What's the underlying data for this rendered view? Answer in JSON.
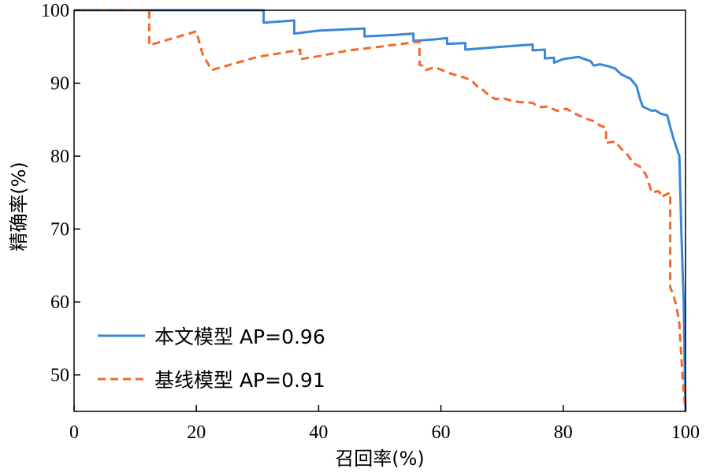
{
  "chart_data": {
    "type": "line",
    "title": "",
    "xlabel": "召回率(%)",
    "ylabel": "精确率(%)",
    "xlim": [
      0,
      100
    ],
    "ylim": [
      45,
      100
    ],
    "xticks": [
      0,
      20,
      40,
      60,
      80,
      100
    ],
    "yticks": [
      50,
      60,
      70,
      80,
      90,
      100
    ],
    "grid": false,
    "legend_position": "bottom-left",
    "series": [
      {
        "name": "本文模型 AP=0.96",
        "color": "#3a87d9",
        "dash": "solid",
        "x": [
          0,
          31,
          31,
          36,
          36,
          40,
          47.5,
          47.5,
          52,
          55.5,
          55.5,
          59,
          61,
          61,
          64,
          64,
          67,
          70,
          75,
          75,
          77,
          77,
          78.5,
          78.5,
          80,
          82.5,
          84.5,
          85,
          86,
          87.5,
          88.5,
          89.5,
          91,
          92,
          92.5,
          93,
          94.5,
          95,
          96,
          97,
          97.5,
          98,
          98.5,
          99,
          99.3,
          99.5,
          99.7,
          99.8,
          99.9,
          100
        ],
        "y": [
          100,
          100,
          98.3,
          98.6,
          96.8,
          97.2,
          97.5,
          96.4,
          96.6,
          96.8,
          95.8,
          96.0,
          96.2,
          95.4,
          95.5,
          94.6,
          94.8,
          95.0,
          95.3,
          94.5,
          94.6,
          93.4,
          93.5,
          92.8,
          93.3,
          93.6,
          93.0,
          92.4,
          92.6,
          92.3,
          92.0,
          91.2,
          90.6,
          89.6,
          88.0,
          86.8,
          86.2,
          86.3,
          85.8,
          85.6,
          84.0,
          82.5,
          81.2,
          80.0,
          70.0,
          65.0,
          60.0,
          55.0,
          50.0,
          45.0
        ]
      },
      {
        "name": "基线模型 AP=0.91",
        "color": "#f26a2b",
        "dash": "dashed",
        "x": [
          0,
          12.3,
          12.3,
          20,
          21,
          22.5,
          25,
          30,
          35,
          37,
          37,
          40,
          45,
          50,
          56.5,
          56.5,
          57,
          57.5,
          59,
          61,
          62,
          63,
          65,
          66,
          67,
          68,
          69,
          70,
          71.5,
          73,
          75,
          76,
          77.5,
          79,
          80.5,
          82,
          83.5,
          85,
          86,
          87,
          87,
          88.5,
          89.5,
          90.5,
          91.5,
          92.5,
          93,
          93.5,
          94.5,
          95.5,
          96,
          96,
          97.5,
          97.5,
          98,
          98.5,
          99,
          99.5,
          100
        ],
        "y": [
          100,
          100,
          95.2,
          97.1,
          94.0,
          91.8,
          92.4,
          93.6,
          94.3,
          94.6,
          93.3,
          93.7,
          94.5,
          95.0,
          95.7,
          92.5,
          92.4,
          91.8,
          92.2,
          91.5,
          91.2,
          91.0,
          90.4,
          89.5,
          89.0,
          88.2,
          87.8,
          88.0,
          87.6,
          87.4,
          87.3,
          86.7,
          86.8,
          86.2,
          86.5,
          85.8,
          85.2,
          84.8,
          84.2,
          83.9,
          81.8,
          82.0,
          81.0,
          80.2,
          79.0,
          78.6,
          78.0,
          77.5,
          75.0,
          75.2,
          74.8,
          74.4,
          75.0,
          62.0,
          61.0,
          59.5,
          57.0,
          50.0,
          45.0
        ]
      }
    ]
  }
}
